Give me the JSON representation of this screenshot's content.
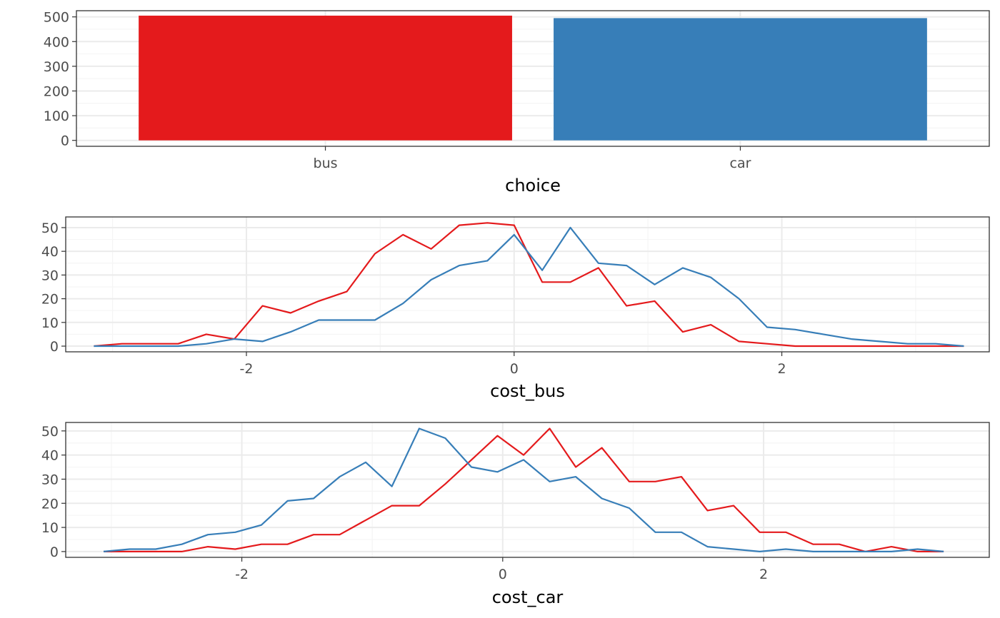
{
  "colors": {
    "bus": "#E41A1C",
    "car": "#377EB8",
    "grid_major": "#EBEBEB",
    "grid_minor": "#F5F5F5",
    "panel_border": "#333333",
    "tick_text": "#4D4D4D"
  },
  "chart_data": [
    {
      "type": "bar",
      "xlabel": "choice",
      "ylabel": "",
      "categories": [
        "bus",
        "car"
      ],
      "values": [
        505,
        495
      ],
      "ylim": [
        -24,
        525
      ],
      "yticks": [
        0,
        100,
        200,
        300,
        400,
        500
      ],
      "grid": true
    },
    {
      "type": "line",
      "xlabel": "cost_bus",
      "ylabel": "",
      "xlim": [
        -3.35,
        3.55
      ],
      "ylim": [
        -2.4,
        54.5
      ],
      "xticks": [
        -2,
        0,
        2
      ],
      "yticks": [
        0,
        10,
        20,
        30,
        40,
        50
      ],
      "grid": true,
      "x": [
        -3.14,
        -2.93,
        -2.72,
        -2.51,
        -2.3,
        -2.09,
        -1.88,
        -1.67,
        -1.46,
        -1.25,
        -1.04,
        -0.83,
        -0.62,
        -0.41,
        -0.2,
        0.0,
        0.21,
        0.42,
        0.63,
        0.84,
        1.05,
        1.26,
        1.47,
        1.68,
        1.89,
        2.1,
        2.31,
        2.52,
        2.73,
        2.94,
        3.15,
        3.36
      ],
      "series": [
        {
          "color": "#E41A1C",
          "values": [
            0,
            1,
            1,
            1,
            5,
            3,
            17,
            14,
            19,
            23,
            39,
            47,
            41,
            51,
            52,
            51,
            27,
            27,
            33,
            17,
            19,
            6,
            9,
            2,
            1,
            0,
            0,
            0,
            0,
            0,
            0,
            0
          ]
        },
        {
          "color": "#377EB8",
          "values": [
            0,
            0,
            0,
            0,
            1,
            3,
            2,
            6,
            11,
            11,
            11,
            18,
            28,
            34,
            36,
            47,
            32,
            50,
            35,
            34,
            26,
            33,
            29,
            20,
            8,
            7,
            5,
            3,
            2,
            1,
            1,
            0
          ]
        }
      ]
    },
    {
      "type": "line",
      "xlabel": "cost_car",
      "ylabel": "",
      "xlim": [
        -3.35,
        3.73
      ],
      "ylim": [
        -2.4,
        53.5
      ],
      "xticks": [
        -2,
        0,
        2
      ],
      "yticks": [
        0,
        10,
        20,
        30,
        40,
        50
      ],
      "grid": true,
      "x": [
        -3.06,
        -2.86,
        -2.66,
        -2.46,
        -2.26,
        -2.05,
        -1.85,
        -1.65,
        -1.45,
        -1.25,
        -1.05,
        -0.85,
        -0.64,
        -0.44,
        -0.24,
        -0.04,
        0.16,
        0.36,
        0.56,
        0.76,
        0.97,
        1.17,
        1.37,
        1.57,
        1.77,
        1.97,
        2.17,
        2.38,
        2.58,
        2.78,
        2.98,
        3.18,
        3.38
      ],
      "series": [
        {
          "color": "#E41A1C",
          "values": [
            0,
            0,
            0,
            0,
            2,
            1,
            3,
            3,
            7,
            7,
            13,
            19,
            19,
            28,
            38,
            48,
            40,
            51,
            35,
            43,
            29,
            29,
            31,
            17,
            19,
            8,
            8,
            3,
            3,
            0,
            2,
            0,
            0
          ]
        },
        {
          "color": "#377EB8",
          "values": [
            0,
            1,
            1,
            3,
            7,
            8,
            11,
            21,
            22,
            31,
            37,
            27,
            51,
            47,
            35,
            33,
            38,
            29,
            31,
            22,
            18,
            8,
            8,
            2,
            1,
            0,
            1,
            0,
            0,
            0,
            0,
            1,
            0
          ]
        }
      ]
    }
  ]
}
